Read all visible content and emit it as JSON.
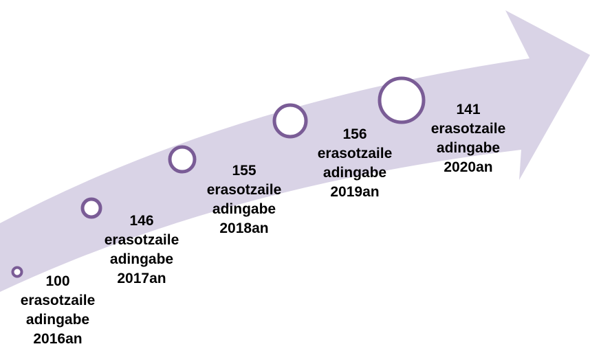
{
  "colors": {
    "arrow_fill": "#d9d3e6",
    "circle_stroke": "#7a5c96",
    "circle_fill": "#ffffff",
    "text": "#000000"
  },
  "milestones": [
    {
      "value": "100",
      "line1": "erasotzaile",
      "line2": "adingabe",
      "year": "2016an"
    },
    {
      "value": "146",
      "line1": "erasotzaile",
      "line2": "adingabe",
      "year": "2017an"
    },
    {
      "value": "155",
      "line1": "erasotzaile",
      "line2": "adingabe",
      "year": "2018an"
    },
    {
      "value": "156",
      "line1": "erasotzaile",
      "line2": "adingabe",
      "year": "2019an"
    },
    {
      "value": "141",
      "line1": "erasotzaile",
      "line2": "adingabe",
      "year": "2020an"
    }
  ]
}
